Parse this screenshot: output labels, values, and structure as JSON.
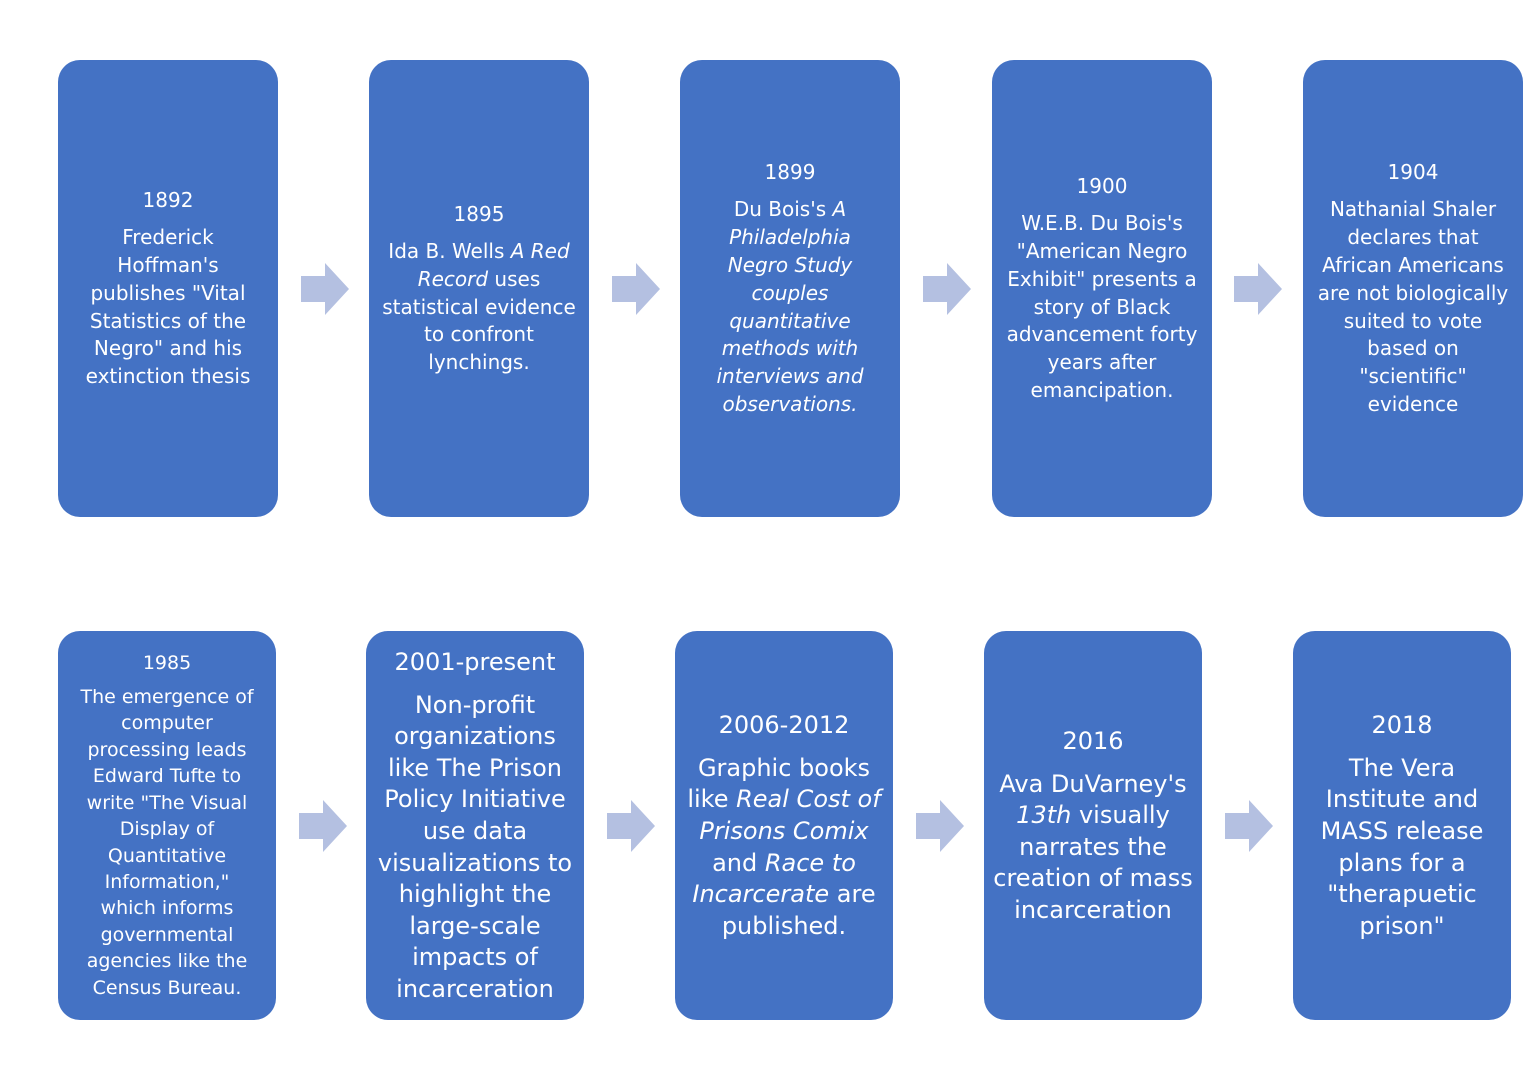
{
  "colors": {
    "box": "#4472c4",
    "arrow": "#b4c0e1",
    "text": "#ffffff"
  },
  "events": [
    {
      "year": "1892",
      "parts": [
        {
          "t": "Frederick Hoffman's publishes \"Vital Statistics of the Negro\" and his extinction thesis"
        }
      ]
    },
    {
      "year": "1895",
      "parts": [
        {
          "t": "Ida B. Wells "
        },
        {
          "t": "A Red Record",
          "i": true
        },
        {
          "t": " uses statistical evidence to confront lynchings."
        }
      ]
    },
    {
      "year": "1899",
      "parts": [
        {
          "t": "Du Bois's "
        },
        {
          "t": "A Philadelphia Negro Study couples quantitative methods with interviews and observations.",
          "i": true
        }
      ]
    },
    {
      "year": "1900",
      "parts": [
        {
          "t": "W.E.B. Du Bois's \"American Negro Exhibit\" presents a story of Black advancement forty years after emancipation."
        }
      ]
    },
    {
      "year": "1904",
      "parts": [
        {
          "t": "Nathanial Shaler declares that African Americans are not biologically suited to vote based on \"scientific\" evidence"
        }
      ]
    },
    {
      "year": "1985",
      "parts": [
        {
          "t": "The emergence of computer processing leads Edward Tufte to write \"The Visual Display of Quantitative Information,\" which informs governmental agencies like the Census Bureau."
        }
      ]
    },
    {
      "year": "2001-present",
      "parts": [
        {
          "t": "Non-profit organizations like The Prison Policy Initiative use data visualizations to highlight the large-scale impacts of incarceration"
        }
      ]
    },
    {
      "year": "2006-2012",
      "parts": [
        {
          "t": "Graphic books like "
        },
        {
          "t": "Real Cost of Prisons Comix",
          "i": true
        },
        {
          "t": " and "
        },
        {
          "t": "Race to Incarcerate",
          "i": true
        },
        {
          "t": " are published."
        }
      ]
    },
    {
      "year": "2016",
      "parts": [
        {
          "t": "Ava DuVarney's "
        },
        {
          "t": "13th",
          "i": true
        },
        {
          "t": " visually narrates the creation of mass incarceration"
        }
      ]
    },
    {
      "year": "2018",
      "parts": [
        {
          "t": "The Vera Institute and MASS release plans for a \"therapuetic prison\""
        }
      ]
    }
  ]
}
